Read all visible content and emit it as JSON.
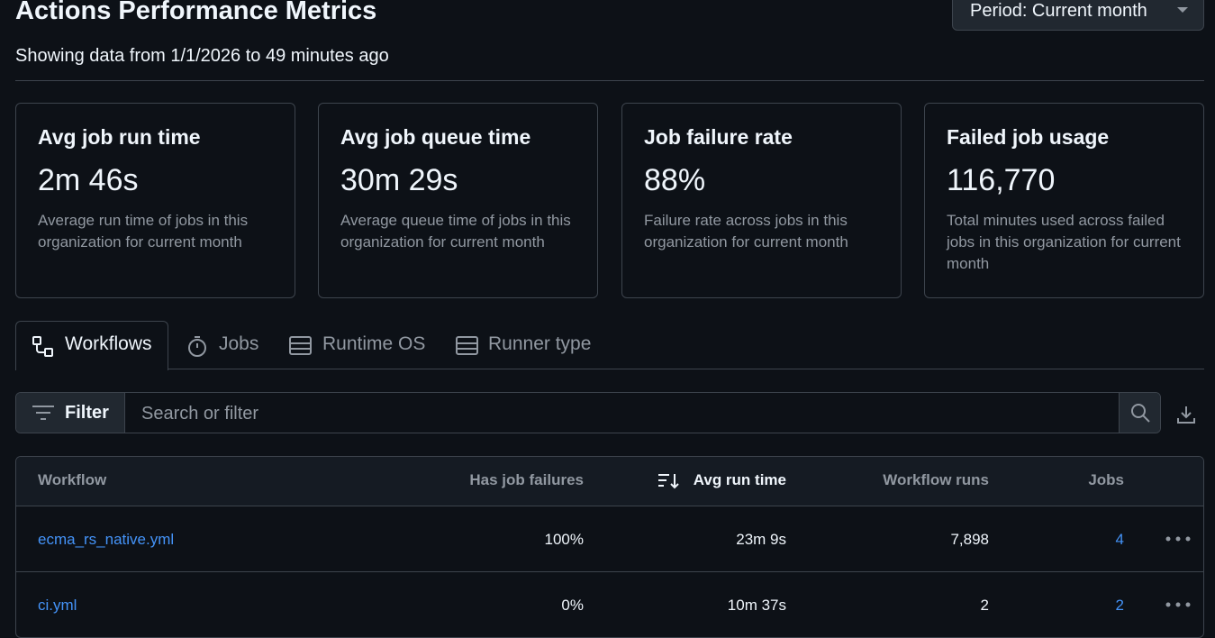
{
  "header": {
    "title": "Actions Performance Metrics",
    "period_button": "Period: Current month",
    "subtitle": "Showing data from 1/1/2026 to 49 minutes ago"
  },
  "cards": [
    {
      "title": "Avg job run time",
      "value": "2m 46s",
      "description": "Average run time of jobs in this organization for current month"
    },
    {
      "title": "Avg job queue time",
      "value": "30m 29s",
      "description": "Average queue time of jobs in this organization for current month"
    },
    {
      "title": "Job failure rate",
      "value": "88%",
      "description": "Failure rate across jobs in this organization for current month"
    },
    {
      "title": "Failed job usage",
      "value": "116,770",
      "description": "Total minutes used across failed jobs in this organization for current month"
    }
  ],
  "tabs": [
    "Workflows",
    "Jobs",
    "Runtime OS",
    "Runner type"
  ],
  "filter": {
    "button": "Filter",
    "placeholder": "Search or filter"
  },
  "table": {
    "columns": [
      "Workflow",
      "Has job failures",
      "Avg run time",
      "Workflow runs",
      "Jobs"
    ],
    "rows": [
      [
        "ecma_rs_native.yml",
        "100%",
        "23m 9s",
        "7,898",
        "4"
      ],
      [
        "ci.yml",
        "0%",
        "10m 37s",
        "2",
        "2"
      ]
    ]
  }
}
